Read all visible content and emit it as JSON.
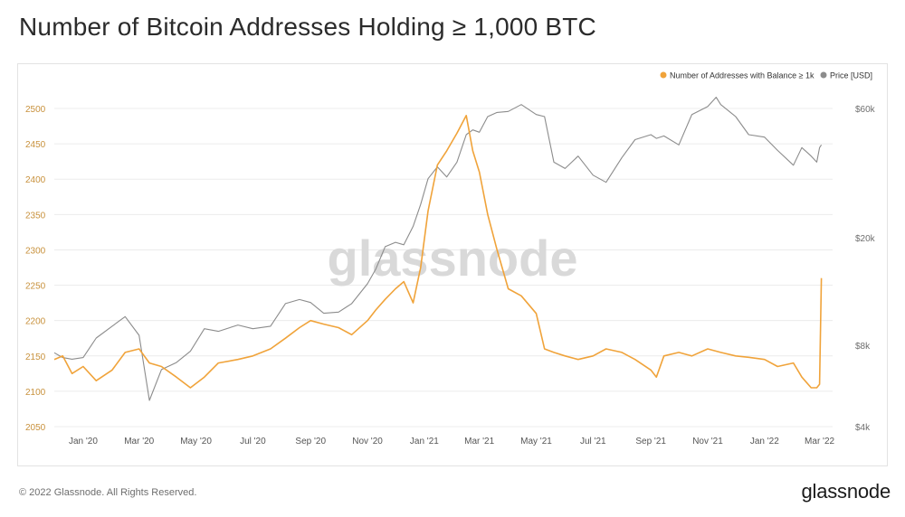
{
  "title": "Number of Bitcoin Addresses Holding ≥ 1,000 BTC",
  "watermark": "glassnode",
  "footer": {
    "copyright": "© 2022 Glassnode. All Rights Reserved.",
    "brand": "glassnode"
  },
  "colors": {
    "addresses": "#f0a33a",
    "price": "#8c8c8c",
    "left_axis_text": "#c8913c",
    "grid": "#ececec"
  },
  "chart_data": {
    "type": "line",
    "title": "Number of Bitcoin Addresses Holding ≥ 1,000 BTC",
    "xlabel": "",
    "ylabel": "",
    "grid": true,
    "legend_position": "top-right",
    "x_range": [
      "2019-12-01",
      "2022-03-15"
    ],
    "x_ticks": [
      "Jan '20",
      "Mar '20",
      "May '20",
      "Jul '20",
      "Sep '20",
      "Nov '20",
      "Jan '21",
      "Mar '21",
      "May '21",
      "Jul '21",
      "Sep '21",
      "Nov '21",
      "Jan '22",
      "Mar '22"
    ],
    "x_tick_dates": [
      "2020-01-01",
      "2020-03-01",
      "2020-05-01",
      "2020-07-01",
      "2020-09-01",
      "2020-11-01",
      "2021-01-01",
      "2021-03-01",
      "2021-05-01",
      "2021-07-01",
      "2021-09-01",
      "2021-11-01",
      "2022-01-01",
      "2022-03-01"
    ],
    "y_left": {
      "range": [
        2050,
        2500
      ],
      "ticks": [
        "2050",
        "2100",
        "2150",
        "2200",
        "2250",
        "2300",
        "2350",
        "2400",
        "2450",
        "2500"
      ],
      "tick_values": [
        2050,
        2100,
        2150,
        2200,
        2250,
        2300,
        2350,
        2400,
        2450,
        2500
      ]
    },
    "y_right": {
      "scale": "log",
      "range": [
        4000,
        60000
      ],
      "ticks": [
        "$4k",
        "$8k",
        "$20k",
        "$60k"
      ],
      "tick_values": [
        4000,
        8000,
        20000,
        60000
      ]
    },
    "series": [
      {
        "name": "Number of Addresses with Balance ≥ 1k",
        "axis": "left",
        "color": "#f0a33a",
        "x": [
          "2019-12-01",
          "2019-12-10",
          "2019-12-20",
          "2020-01-01",
          "2020-01-15",
          "2020-02-01",
          "2020-02-15",
          "2020-03-01",
          "2020-03-12",
          "2020-03-25",
          "2020-04-10",
          "2020-04-25",
          "2020-05-10",
          "2020-05-25",
          "2020-06-15",
          "2020-07-01",
          "2020-07-20",
          "2020-08-05",
          "2020-08-20",
          "2020-09-01",
          "2020-09-15",
          "2020-10-01",
          "2020-10-15",
          "2020-11-01",
          "2020-11-10",
          "2020-11-20",
          "2020-12-01",
          "2020-12-10",
          "2020-12-20",
          "2020-12-28",
          "2021-01-05",
          "2021-01-15",
          "2021-01-25",
          "2021-02-05",
          "2021-02-15",
          "2021-02-22",
          "2021-03-01",
          "2021-03-10",
          "2021-03-20",
          "2021-04-01",
          "2021-04-15",
          "2021-05-01",
          "2021-05-10",
          "2021-05-20",
          "2021-06-01",
          "2021-06-15",
          "2021-07-01",
          "2021-07-15",
          "2021-08-01",
          "2021-08-15",
          "2021-09-01",
          "2021-09-07",
          "2021-09-15",
          "2021-10-01",
          "2021-10-15",
          "2021-11-01",
          "2021-11-15",
          "2021-12-01",
          "2021-12-15",
          "2022-01-01",
          "2022-01-15",
          "2022-02-01",
          "2022-02-10",
          "2022-02-20",
          "2022-02-26",
          "2022-03-01",
          "2022-03-03"
        ],
        "values": [
          2145,
          2150,
          2125,
          2135,
          2115,
          2130,
          2155,
          2160,
          2140,
          2135,
          2120,
          2105,
          2120,
          2140,
          2145,
          2150,
          2160,
          2175,
          2190,
          2200,
          2195,
          2190,
          2180,
          2200,
          2215,
          2230,
          2245,
          2255,
          2225,
          2275,
          2355,
          2420,
          2440,
          2465,
          2490,
          2440,
          2410,
          2350,
          2300,
          2245,
          2235,
          2210,
          2160,
          2155,
          2150,
          2145,
          2150,
          2160,
          2155,
          2145,
          2130,
          2120,
          2150,
          2155,
          2150,
          2160,
          2155,
          2150,
          2148,
          2145,
          2135,
          2140,
          2120,
          2105,
          2105,
          2110,
          2260
        ]
      },
      {
        "name": "Price [USD]",
        "axis": "right",
        "color": "#8c8c8c",
        "x": [
          "2019-12-01",
          "2019-12-10",
          "2019-12-20",
          "2020-01-01",
          "2020-01-15",
          "2020-02-01",
          "2020-02-15",
          "2020-03-01",
          "2020-03-12",
          "2020-03-25",
          "2020-04-10",
          "2020-04-25",
          "2020-05-10",
          "2020-05-25",
          "2020-06-15",
          "2020-07-01",
          "2020-07-20",
          "2020-08-05",
          "2020-08-20",
          "2020-09-01",
          "2020-09-15",
          "2020-10-01",
          "2020-10-15",
          "2020-11-01",
          "2020-11-10",
          "2020-11-20",
          "2020-12-01",
          "2020-12-10",
          "2020-12-20",
          "2020-12-28",
          "2021-01-05",
          "2021-01-15",
          "2021-01-25",
          "2021-02-05",
          "2021-02-15",
          "2021-02-22",
          "2021-03-01",
          "2021-03-10",
          "2021-03-20",
          "2021-04-01",
          "2021-04-15",
          "2021-05-01",
          "2021-05-10",
          "2021-05-20",
          "2021-06-01",
          "2021-06-15",
          "2021-07-01",
          "2021-07-15",
          "2021-08-01",
          "2021-08-15",
          "2021-09-01",
          "2021-09-07",
          "2021-09-15",
          "2021-10-01",
          "2021-10-15",
          "2021-11-01",
          "2021-11-10",
          "2021-11-15",
          "2021-12-01",
          "2021-12-15",
          "2022-01-01",
          "2022-01-15",
          "2022-02-01",
          "2022-02-10",
          "2022-02-20",
          "2022-02-26",
          "2022-03-01",
          "2022-03-03"
        ],
        "values": [
          7500,
          7200,
          7100,
          7200,
          8500,
          9400,
          10200,
          8700,
          5000,
          6500,
          6900,
          7600,
          9200,
          9000,
          9500,
          9200,
          9400,
          11400,
          11800,
          11500,
          10500,
          10600,
          11400,
          13500,
          15300,
          18500,
          19200,
          18800,
          22000,
          26500,
          33000,
          36500,
          33500,
          38000,
          48000,
          50000,
          49000,
          56000,
          58000,
          58500,
          62000,
          57000,
          56000,
          38000,
          36000,
          40000,
          34000,
          32000,
          39500,
          46000,
          48000,
          46500,
          47500,
          44000,
          57000,
          61000,
          66000,
          62000,
          56000,
          48000,
          47000,
          42000,
          37000,
          43000,
          40000,
          38000,
          43000,
          44000
        ]
      }
    ]
  }
}
